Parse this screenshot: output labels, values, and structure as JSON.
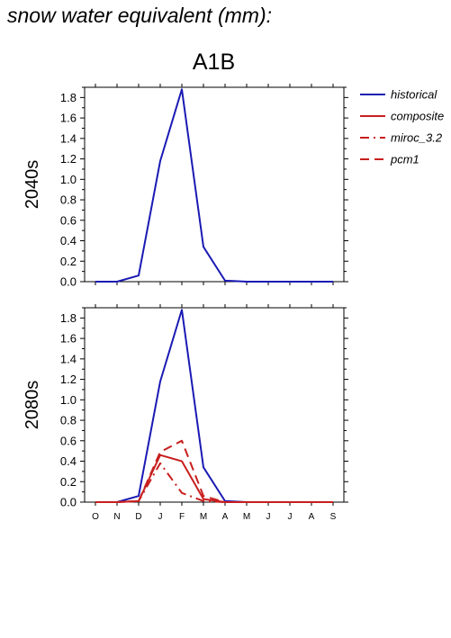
{
  "title": "snow water equivalent (mm):",
  "scenario": "A1B",
  "colors": {
    "historical": "#1a1ab4",
    "scenario": "#c81e1e",
    "axis": "#000000"
  },
  "legend": [
    {
      "name": "historical",
      "color": "#1a1ab4",
      "dash": "solid"
    },
    {
      "name": "composite",
      "color": "#c81e1e",
      "dash": "solid"
    },
    {
      "name": "miroc_3.2",
      "color": "#c81e1e",
      "dash": "dashdot"
    },
    {
      "name": "pcm1",
      "color": "#c81e1e",
      "dash": "dash"
    }
  ],
  "chart_data": [
    {
      "type": "line",
      "row_label": "2040s",
      "categories": [
        "O",
        "N",
        "D",
        "J",
        "F",
        "M",
        "A",
        "M",
        "J",
        "J",
        "A",
        "S"
      ],
      "ylim": [
        0,
        1.9
      ],
      "yticks": [
        0.0,
        0.2,
        0.4,
        0.6,
        0.8,
        1.0,
        1.2,
        1.4,
        1.6,
        1.8
      ],
      "ytick_labels": [
        "0.0",
        "0.2",
        "0.4",
        "0.6",
        "0.8",
        "1.0",
        "1.2",
        "1.4",
        "1.6",
        "1.8"
      ],
      "show_month_labels": false,
      "series": [
        {
          "name": "historical",
          "values": [
            0.0,
            0.0,
            0.06,
            1.18,
            1.88,
            0.34,
            0.01,
            0.0,
            0.0,
            0.0,
            0.0,
            0.0
          ]
        }
      ]
    },
    {
      "type": "line",
      "row_label": "2080s",
      "categories": [
        "O",
        "N",
        "D",
        "J",
        "F",
        "M",
        "A",
        "M",
        "J",
        "J",
        "A",
        "S"
      ],
      "ylim": [
        0,
        1.9
      ],
      "yticks": [
        0.0,
        0.2,
        0.4,
        0.6,
        0.8,
        1.0,
        1.2,
        1.4,
        1.6,
        1.8
      ],
      "ytick_labels": [
        "0.0",
        "0.2",
        "0.4",
        "0.6",
        "0.8",
        "1.0",
        "1.2",
        "1.4",
        "1.6",
        "1.8"
      ],
      "show_month_labels": true,
      "series": [
        {
          "name": "historical",
          "values": [
            0.0,
            0.0,
            0.06,
            1.18,
            1.88,
            0.34,
            0.01,
            0.0,
            0.0,
            0.0,
            0.0,
            0.0
          ]
        },
        {
          "name": "composite",
          "values": [
            0.0,
            0.0,
            0.01,
            0.46,
            0.4,
            0.03,
            0.0,
            0.0,
            0.0,
            0.0,
            0.0,
            0.0
          ]
        },
        {
          "name": "miroc_3.2",
          "values": [
            0.0,
            0.0,
            0.01,
            0.38,
            0.09,
            0.01,
            0.0,
            0.0,
            0.0,
            0.0,
            0.0,
            0.0
          ]
        },
        {
          "name": "pcm1",
          "values": [
            0.0,
            0.0,
            0.01,
            0.49,
            0.6,
            0.06,
            0.0,
            0.0,
            0.0,
            0.0,
            0.0,
            0.0
          ]
        }
      ]
    }
  ]
}
